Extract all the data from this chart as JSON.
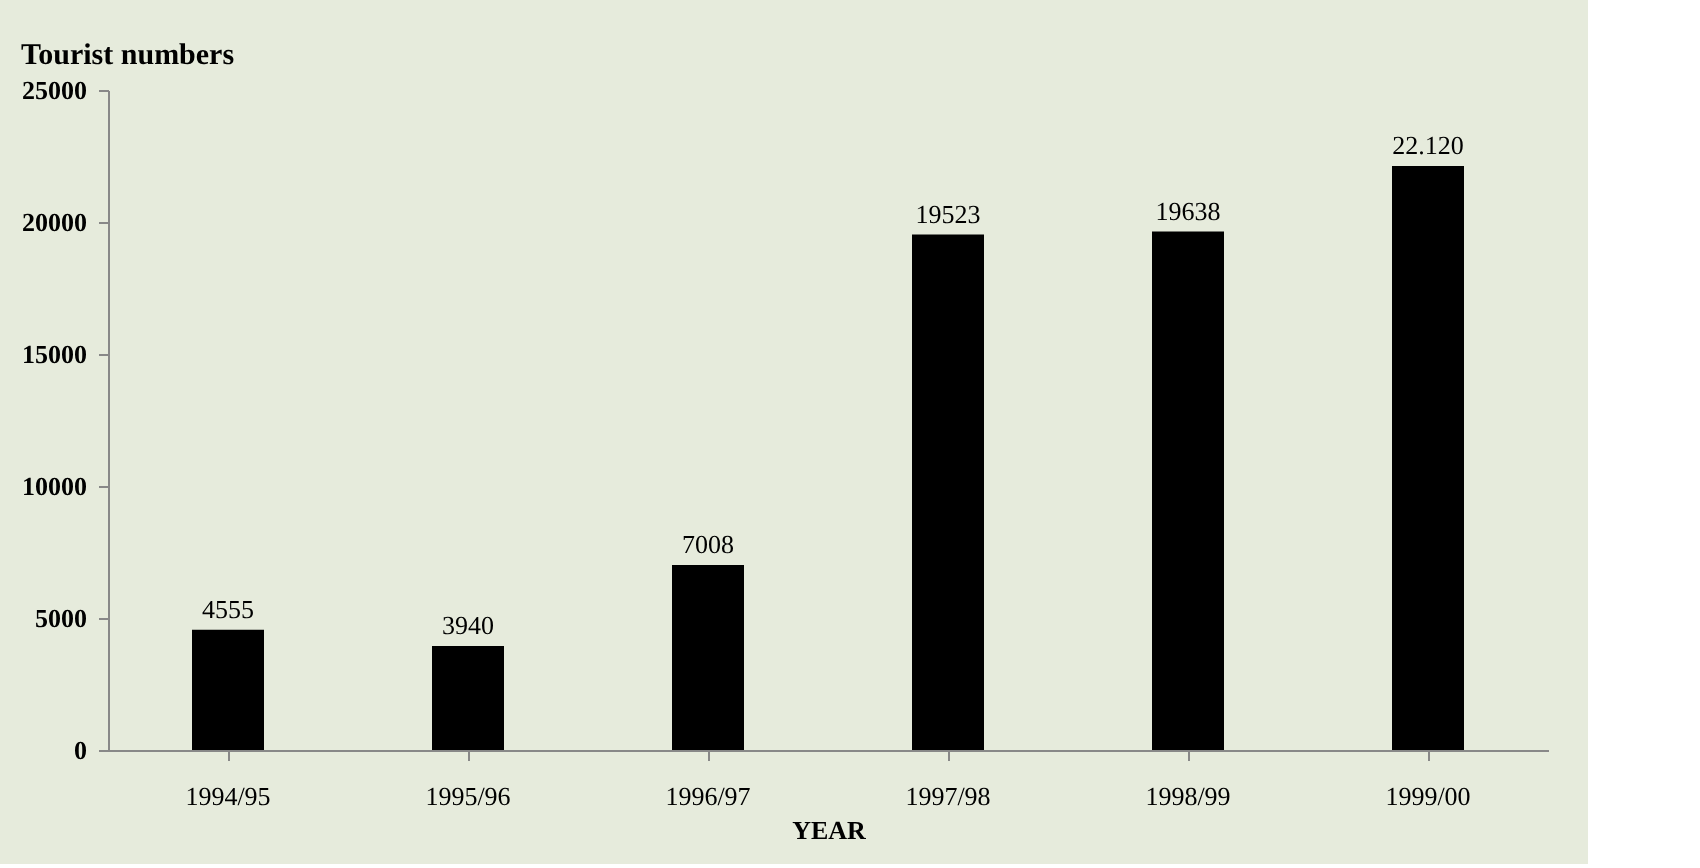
{
  "chart_data": {
    "type": "bar",
    "title": "Tourist numbers",
    "xlabel": "YEAR",
    "categories": [
      "1994/95",
      "1995/96",
      "1996/97",
      "1997/98",
      "1998/99",
      "1999/00"
    ],
    "values": [
      4555,
      3940,
      7008,
      19523,
      19638,
      22120
    ],
    "value_labels": [
      "4555",
      "3940",
      "7008",
      "19523",
      "19638",
      "22.120"
    ],
    "color": "#000000",
    "ylim": [
      0,
      25000
    ],
    "yticks": [
      0,
      5000,
      10000,
      15000,
      20000,
      25000
    ],
    "grid": false
  }
}
